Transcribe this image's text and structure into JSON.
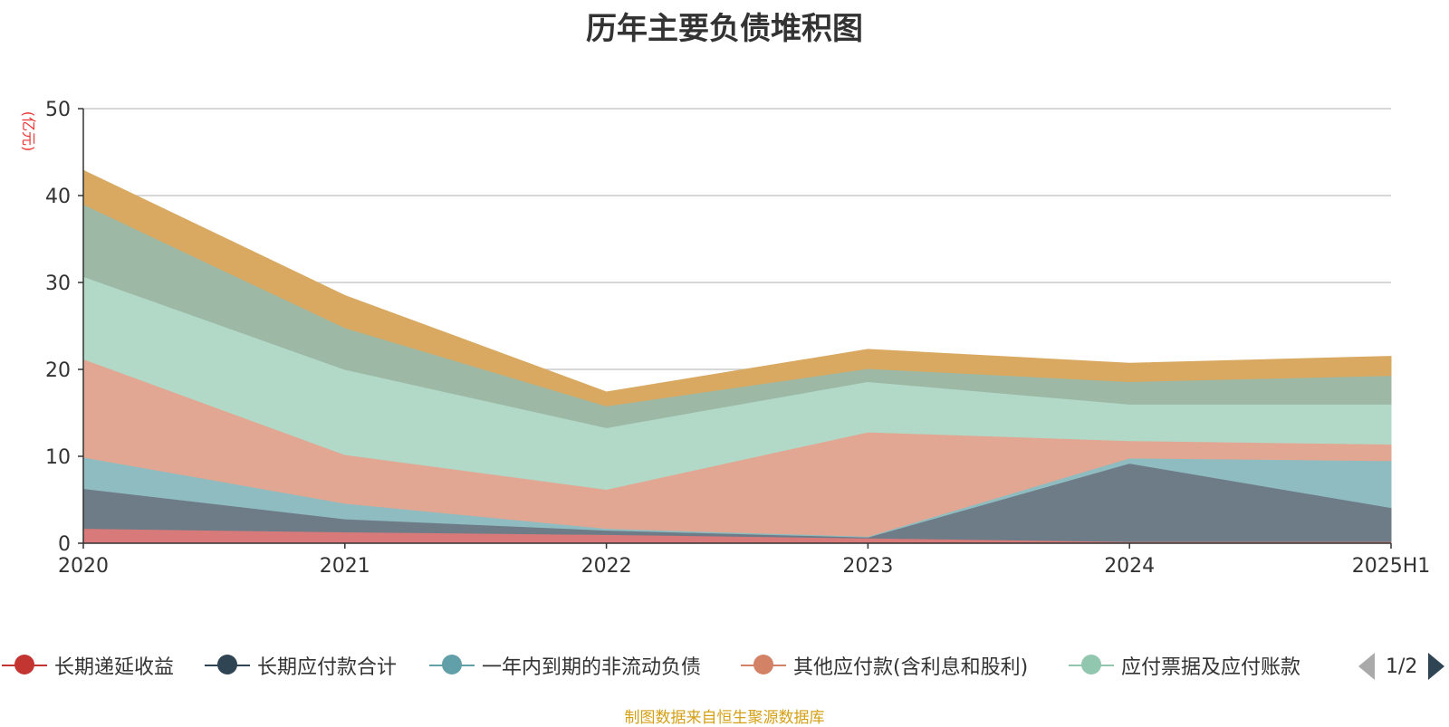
{
  "title": "历年主要负债堆积图",
  "footer": "制图数据来自恒生聚源数据库",
  "pager": {
    "text": "1/2"
  },
  "legend": [
    {
      "label": "长期递延收益",
      "color": "#c23531"
    },
    {
      "label": "长期应付款合计",
      "color": "#2f4554"
    },
    {
      "label": "一年内到期的非流动负债",
      "color": "#61a0a8"
    },
    {
      "label": "其他应付款(含利息和股利)",
      "color": "#d48265"
    },
    {
      "label": "应付票据及应付账款",
      "color": "#91c7ae"
    }
  ],
  "chart_data": {
    "type": "area",
    "stacked": true,
    "ylabel": "(亿元)",
    "ylim": [
      0,
      50
    ],
    "yticks": [
      0,
      10,
      20,
      30,
      40,
      50
    ],
    "grid": true,
    "categories": [
      "2020",
      "2021",
      "2022",
      "2023",
      "2024",
      "2025H1"
    ],
    "series": [
      {
        "name": "长期递延收益",
        "color": "#d87a7a",
        "values": [
          1.7,
          1.3,
          1.0,
          0.6,
          0.2,
          0.2
        ]
      },
      {
        "name": "长期应付款合计",
        "color": "#6e7c88",
        "values": [
          4.6,
          1.5,
          0.5,
          0.1,
          9.0,
          3.9
        ]
      },
      {
        "name": "一年内到期的非流动负债",
        "color": "#8fbcc1",
        "values": [
          3.6,
          1.8,
          0.2,
          0.1,
          0.6,
          5.4
        ]
      },
      {
        "name": "其他应付款(含利息和股利)",
        "color": "#e1a792",
        "values": [
          11.3,
          5.6,
          4.5,
          12.0,
          2.0,
          1.9
        ]
      },
      {
        "name": "应付票据及应付账款",
        "color": "#b2d8c7",
        "values": [
          9.5,
          9.8,
          7.1,
          5.8,
          4.2,
          4.6
        ]
      },
      {
        "color": "#9db9a5",
        "values": [
          8.3,
          4.8,
          2.5,
          1.5,
          2.6,
          3.3
        ]
      },
      {
        "color": "#d9a962",
        "values": [
          3.9,
          3.7,
          1.6,
          2.2,
          2.1,
          2.2
        ]
      }
    ]
  }
}
